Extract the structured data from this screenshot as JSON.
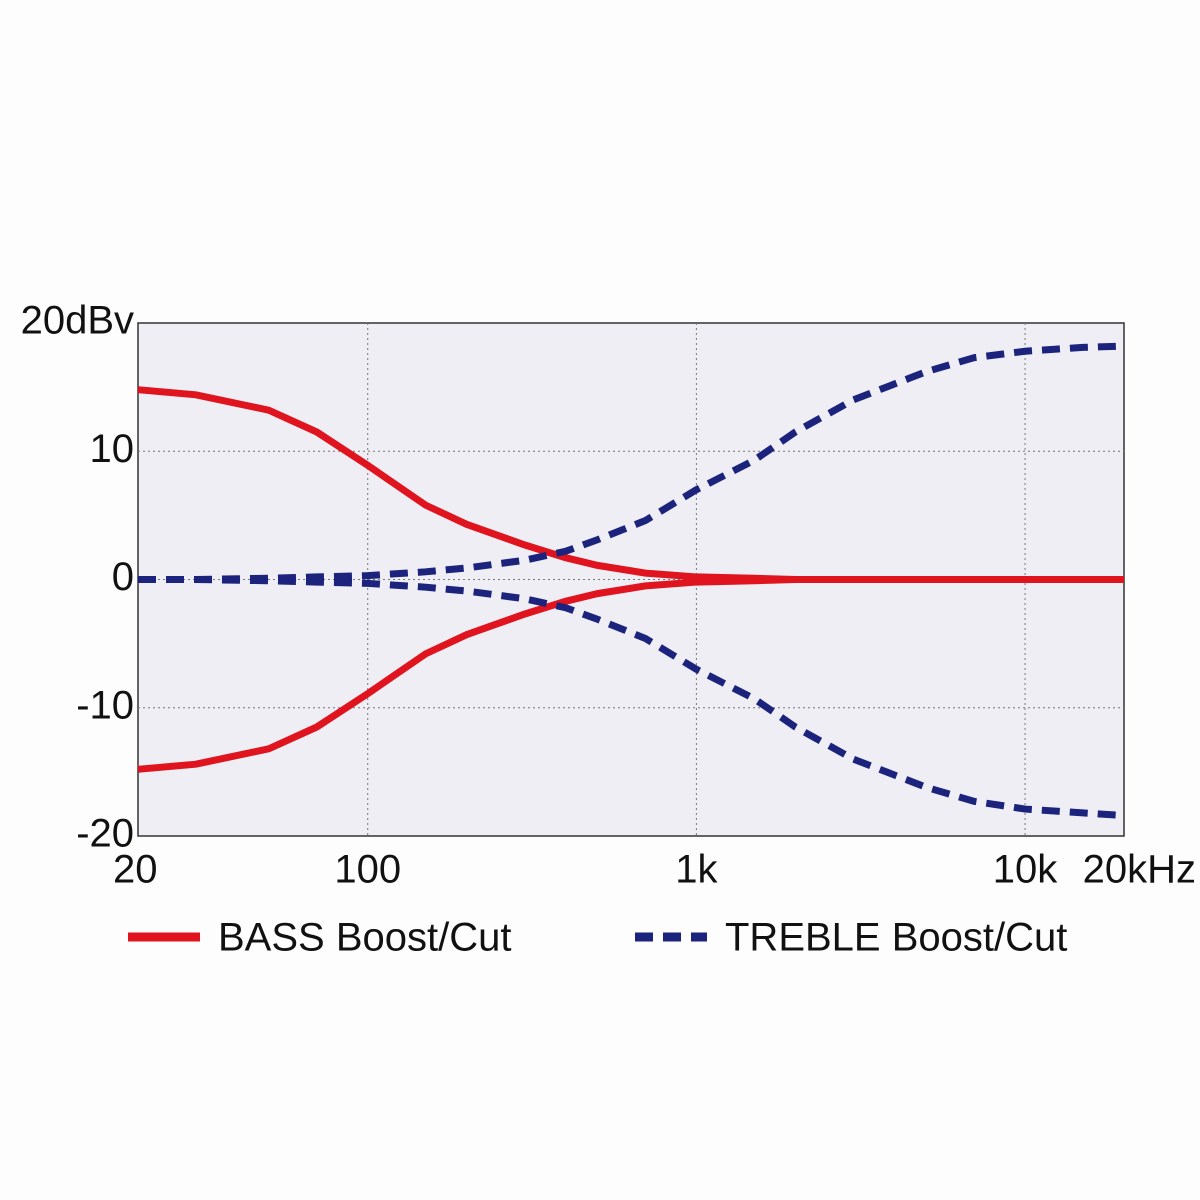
{
  "chart_data": {
    "type": "line",
    "x": [
      20,
      30,
      50,
      70,
      100,
      150,
      200,
      300,
      400,
      500,
      700,
      1000,
      1500,
      2000,
      3000,
      5000,
      7000,
      10000,
      15000,
      20000
    ],
    "xscale": "log",
    "xlim": [
      20,
      20000
    ],
    "xticks": [
      20,
      100,
      {
        "value": 1000,
        "label": "1k"
      },
      {
        "value": 10000,
        "label": "10k"
      },
      {
        "value": 20000,
        "label": "20kHz"
      }
    ],
    "ylim": [
      -20,
      20
    ],
    "yticks": [
      {
        "value": 20,
        "label": "20dBv"
      },
      10,
      0,
      -10,
      -20
    ],
    "grid": true,
    "legend": "bottom",
    "series": [
      {
        "name": "BASS Boost/Cut",
        "color": "#e0141e",
        "style": "solid",
        "curves": [
          [
            14.8,
            14.4,
            13.2,
            11.5,
            8.9,
            5.8,
            4.3,
            2.7,
            1.7,
            1.1,
            0.5,
            0.2,
            0.1,
            0,
            0,
            0,
            0,
            0,
            0,
            0
          ],
          [
            -14.8,
            -14.4,
            -13.2,
            -11.5,
            -8.9,
            -5.8,
            -4.3,
            -2.7,
            -1.7,
            -1.1,
            -0.5,
            -0.2,
            -0.1,
            0,
            0,
            0,
            0,
            0,
            0,
            0
          ]
        ]
      },
      {
        "name": "TREBLE Boost/Cut",
        "color": "#1c237c",
        "style": "dashed",
        "curves": [
          [
            0,
            0,
            0.1,
            0.2,
            0.3,
            0.6,
            0.9,
            1.5,
            2.2,
            3.1,
            4.6,
            7.0,
            9.3,
            11.5,
            14.0,
            16.2,
            17.3,
            17.8,
            18.1,
            18.2
          ],
          [
            0,
            0,
            -0.1,
            -0.2,
            -0.3,
            -0.6,
            -0.9,
            -1.5,
            -2.2,
            -3.1,
            -4.6,
            -7.0,
            -9.3,
            -11.5,
            -14.0,
            -16.2,
            -17.3,
            -17.9,
            -18.2,
            -18.4
          ]
        ]
      }
    ]
  }
}
